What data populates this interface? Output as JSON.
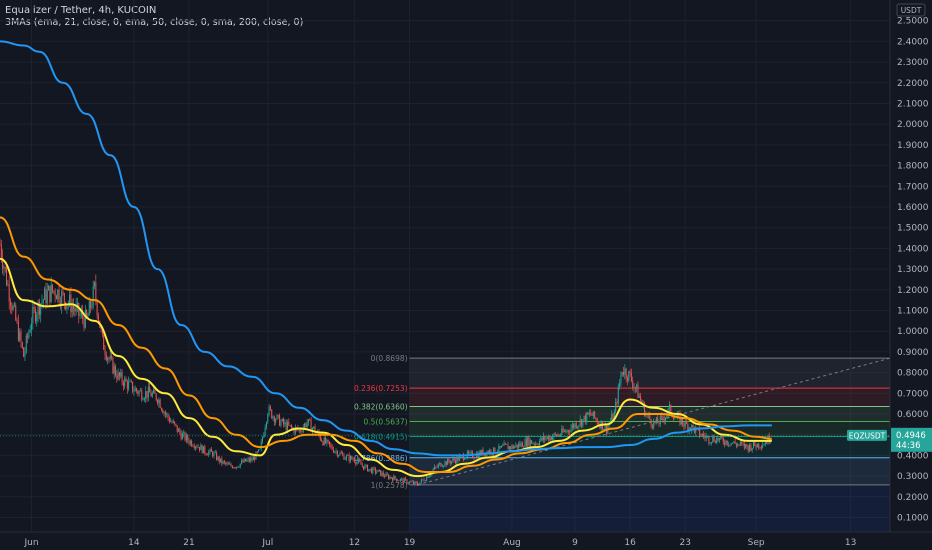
{
  "header": {
    "title": "Equalizer / Tether, 4h, KUCOIN",
    "study": "3MAs (ema, 21, close, 0, ema, 50, close, 0, sma, 200, close, 0)"
  },
  "currency_badge": "USDT",
  "price_tag": {
    "symbol": "EQZUSDT",
    "price": "0.4946",
    "countdown": "44:36",
    "color": "#26a69a"
  },
  "colors": {
    "background": "#131722",
    "up": "#26a69a",
    "down": "#ef5350",
    "ema21": "#ffeb3b",
    "ema50": "#ff9800",
    "sma200": "#2196f3"
  },
  "chart_data": {
    "type": "candlestick",
    "y_axis": {
      "min": 0.03,
      "max": 2.6,
      "ticks": [
        "0.1000",
        "0.2000",
        "0.3000",
        "0.4000",
        "0.5000",
        "0.6000",
        "0.7000",
        "0.8000",
        "0.9000",
        "1.0000",
        "1.1000",
        "1.2000",
        "1.3000",
        "1.4000",
        "1.5000",
        "1.6000",
        "1.7000",
        "1.8000",
        "1.9000",
        "2.0000",
        "2.1000",
        "2.2000",
        "2.3000",
        "2.4000",
        "2.5000"
      ]
    },
    "x_axis": {
      "start": "2021-05-28",
      "end": "2021-09-18",
      "ticks": [
        {
          "date": "2021-06-01",
          "label": "Jun"
        },
        {
          "date": "2021-06-14",
          "label": "14"
        },
        {
          "date": "2021-06-21",
          "label": "21"
        },
        {
          "date": "2021-07-01",
          "label": "Jul"
        },
        {
          "date": "2021-07-12",
          "label": "12"
        },
        {
          "date": "2021-07-19",
          "label": "19"
        },
        {
          "date": "2021-08-01",
          "label": "Aug"
        },
        {
          "date": "2021-08-09",
          "label": "9"
        },
        {
          "date": "2021-08-16",
          "label": "16"
        },
        {
          "date": "2021-08-23",
          "label": "23"
        },
        {
          "date": "2021-09-01",
          "label": "Sep"
        },
        {
          "date": "2021-09-13",
          "label": "13"
        }
      ]
    },
    "price_path": [
      [
        "2021-05-28",
        1.42
      ],
      [
        "2021-05-29",
        1.22
      ],
      [
        "2021-05-30",
        1.05
      ],
      [
        "2021-05-31",
        0.88
      ],
      [
        "2021-06-01",
        1.06
      ],
      [
        "2021-06-02",
        1.13
      ],
      [
        "2021-06-03",
        1.18
      ],
      [
        "2021-06-04",
        1.2
      ],
      [
        "2021-06-05",
        1.16
      ],
      [
        "2021-06-06",
        1.13
      ],
      [
        "2021-06-07",
        1.08
      ],
      [
        "2021-06-08",
        1.05
      ],
      [
        "2021-06-09",
        1.2
      ],
      [
        "2021-06-10",
        0.95
      ],
      [
        "2021-06-11",
        0.85
      ],
      [
        "2021-06-12",
        0.78
      ],
      [
        "2021-06-13",
        0.75
      ],
      [
        "2021-06-14",
        0.72
      ],
      [
        "2021-06-15",
        0.7
      ],
      [
        "2021-06-16",
        0.7
      ],
      [
        "2021-06-17",
        0.68
      ],
      [
        "2021-06-18",
        0.6
      ],
      [
        "2021-06-19",
        0.55
      ],
      [
        "2021-06-20",
        0.5
      ],
      [
        "2021-06-21",
        0.47
      ],
      [
        "2021-06-22",
        0.45
      ],
      [
        "2021-06-23",
        0.42
      ],
      [
        "2021-06-24",
        0.41
      ],
      [
        "2021-06-25",
        0.37
      ],
      [
        "2021-06-26",
        0.35
      ],
      [
        "2021-06-27",
        0.35
      ],
      [
        "2021-06-28",
        0.37
      ],
      [
        "2021-06-29",
        0.38
      ],
      [
        "2021-06-30",
        0.42
      ],
      [
        "2021-07-01",
        0.62
      ],
      [
        "2021-07-02",
        0.58
      ],
      [
        "2021-07-03",
        0.55
      ],
      [
        "2021-07-04",
        0.53
      ],
      [
        "2021-07-05",
        0.52
      ],
      [
        "2021-07-06",
        0.56
      ],
      [
        "2021-07-07",
        0.52
      ],
      [
        "2021-07-08",
        0.47
      ],
      [
        "2021-07-09",
        0.44
      ],
      [
        "2021-07-10",
        0.41
      ],
      [
        "2021-07-11",
        0.39
      ],
      [
        "2021-07-12",
        0.38
      ],
      [
        "2021-07-13",
        0.35
      ],
      [
        "2021-07-14",
        0.33
      ],
      [
        "2021-07-15",
        0.32
      ],
      [
        "2021-07-16",
        0.3
      ],
      [
        "2021-07-17",
        0.29
      ],
      [
        "2021-07-18",
        0.28
      ],
      [
        "2021-07-19",
        0.27
      ],
      [
        "2021-07-20",
        0.26
      ],
      [
        "2021-07-21",
        0.29
      ],
      [
        "2021-07-22",
        0.33
      ],
      [
        "2021-07-23",
        0.36
      ],
      [
        "2021-07-24",
        0.37
      ],
      [
        "2021-07-25",
        0.38
      ],
      [
        "2021-07-26",
        0.4
      ],
      [
        "2021-07-27",
        0.4
      ],
      [
        "2021-07-28",
        0.41
      ],
      [
        "2021-07-29",
        0.42
      ],
      [
        "2021-07-30",
        0.42
      ],
      [
        "2021-07-31",
        0.44
      ],
      [
        "2021-08-01",
        0.44
      ],
      [
        "2021-08-02",
        0.45
      ],
      [
        "2021-08-03",
        0.47
      ],
      [
        "2021-08-04",
        0.46
      ],
      [
        "2021-08-05",
        0.48
      ],
      [
        "2021-08-06",
        0.49
      ],
      [
        "2021-08-07",
        0.5
      ],
      [
        "2021-08-08",
        0.52
      ],
      [
        "2021-08-09",
        0.55
      ],
      [
        "2021-08-10",
        0.57
      ],
      [
        "2021-08-11",
        0.6
      ],
      [
        "2021-08-12",
        0.56
      ],
      [
        "2021-08-13",
        0.53
      ],
      [
        "2021-08-14",
        0.6
      ],
      [
        "2021-08-15",
        0.82
      ],
      [
        "2021-08-16",
        0.78
      ],
      [
        "2021-08-17",
        0.7
      ],
      [
        "2021-08-18",
        0.6
      ],
      [
        "2021-08-19",
        0.55
      ],
      [
        "2021-08-20",
        0.57
      ],
      [
        "2021-08-21",
        0.62
      ],
      [
        "2021-08-22",
        0.58
      ],
      [
        "2021-08-23",
        0.55
      ],
      [
        "2021-08-24",
        0.53
      ],
      [
        "2021-08-25",
        0.5
      ],
      [
        "2021-08-26",
        0.48
      ],
      [
        "2021-08-27",
        0.48
      ],
      [
        "2021-08-28",
        0.47
      ],
      [
        "2021-08-29",
        0.46
      ],
      [
        "2021-08-30",
        0.45
      ],
      [
        "2021-08-31",
        0.44
      ],
      [
        "2021-09-01",
        0.45
      ],
      [
        "2021-09-02",
        0.46
      ],
      [
        "2021-09-03",
        0.4946
      ]
    ],
    "series": [
      {
        "name": "ema 21",
        "color": "#ffeb3b",
        "points": [
          [
            "2021-05-28",
            1.35
          ],
          [
            "2021-05-31",
            1.15
          ],
          [
            "2021-06-03",
            1.12
          ],
          [
            "2021-06-06",
            1.13
          ],
          [
            "2021-06-09",
            1.05
          ],
          [
            "2021-06-12",
            0.88
          ],
          [
            "2021-06-15",
            0.77
          ],
          [
            "2021-06-18",
            0.7
          ],
          [
            "2021-06-21",
            0.58
          ],
          [
            "2021-06-24",
            0.49
          ],
          [
            "2021-06-27",
            0.42
          ],
          [
            "2021-06-30",
            0.4
          ],
          [
            "2021-07-02",
            0.5
          ],
          [
            "2021-07-05",
            0.53
          ],
          [
            "2021-07-08",
            0.51
          ],
          [
            "2021-07-11",
            0.45
          ],
          [
            "2021-07-14",
            0.38
          ],
          [
            "2021-07-17",
            0.33
          ],
          [
            "2021-07-20",
            0.3
          ],
          [
            "2021-07-23",
            0.32
          ],
          [
            "2021-07-26",
            0.36
          ],
          [
            "2021-07-29",
            0.39
          ],
          [
            "2021-08-01",
            0.42
          ],
          [
            "2021-08-04",
            0.44
          ],
          [
            "2021-08-07",
            0.47
          ],
          [
            "2021-08-10",
            0.52
          ],
          [
            "2021-08-13",
            0.55
          ],
          [
            "2021-08-16",
            0.67
          ],
          [
            "2021-08-19",
            0.63
          ],
          [
            "2021-08-22",
            0.6
          ],
          [
            "2021-08-25",
            0.55
          ],
          [
            "2021-08-28",
            0.5
          ],
          [
            "2021-08-31",
            0.47
          ],
          [
            "2021-09-03",
            0.47
          ]
        ]
      },
      {
        "name": "ema 50",
        "color": "#ff9800",
        "points": [
          [
            "2021-05-28",
            1.55
          ],
          [
            "2021-05-31",
            1.36
          ],
          [
            "2021-06-03",
            1.25
          ],
          [
            "2021-06-06",
            1.2
          ],
          [
            "2021-06-09",
            1.15
          ],
          [
            "2021-06-12",
            1.03
          ],
          [
            "2021-06-15",
            0.92
          ],
          [
            "2021-06-18",
            0.82
          ],
          [
            "2021-06-21",
            0.69
          ],
          [
            "2021-06-24",
            0.58
          ],
          [
            "2021-06-27",
            0.5
          ],
          [
            "2021-06-30",
            0.44
          ],
          [
            "2021-07-03",
            0.47
          ],
          [
            "2021-07-06",
            0.5
          ],
          [
            "2021-07-09",
            0.5
          ],
          [
            "2021-07-12",
            0.47
          ],
          [
            "2021-07-15",
            0.41
          ],
          [
            "2021-07-18",
            0.36
          ],
          [
            "2021-07-21",
            0.32
          ],
          [
            "2021-07-24",
            0.32
          ],
          [
            "2021-07-27",
            0.35
          ],
          [
            "2021-07-30",
            0.38
          ],
          [
            "2021-08-02",
            0.41
          ],
          [
            "2021-08-05",
            0.43
          ],
          [
            "2021-08-08",
            0.46
          ],
          [
            "2021-08-11",
            0.5
          ],
          [
            "2021-08-14",
            0.53
          ],
          [
            "2021-08-17",
            0.6
          ],
          [
            "2021-08-20",
            0.6
          ],
          [
            "2021-08-23",
            0.58
          ],
          [
            "2021-08-26",
            0.55
          ],
          [
            "2021-08-29",
            0.52
          ],
          [
            "2021-09-01",
            0.49
          ],
          [
            "2021-09-03",
            0.48
          ]
        ]
      },
      {
        "name": "sma 200",
        "color": "#2196f3",
        "points": [
          [
            "2021-05-28",
            2.4
          ],
          [
            "2021-05-31",
            2.38
          ],
          [
            "2021-06-02",
            2.35
          ],
          [
            "2021-06-05",
            2.2
          ],
          [
            "2021-06-08",
            2.05
          ],
          [
            "2021-06-11",
            1.85
          ],
          [
            "2021-06-14",
            1.6
          ],
          [
            "2021-06-17",
            1.3
          ],
          [
            "2021-06-20",
            1.03
          ],
          [
            "2021-06-23",
            0.9
          ],
          [
            "2021-06-26",
            0.83
          ],
          [
            "2021-06-29",
            0.78
          ],
          [
            "2021-07-02",
            0.7
          ],
          [
            "2021-07-05",
            0.63
          ],
          [
            "2021-07-08",
            0.57
          ],
          [
            "2021-07-11",
            0.52
          ],
          [
            "2021-07-14",
            0.47
          ],
          [
            "2021-07-17",
            0.43
          ],
          [
            "2021-07-20",
            0.41
          ],
          [
            "2021-07-23",
            0.4
          ],
          [
            "2021-07-26",
            0.4
          ],
          [
            "2021-07-29",
            0.41
          ],
          [
            "2021-08-01",
            0.42
          ],
          [
            "2021-08-04",
            0.43
          ],
          [
            "2021-08-07",
            0.435
          ],
          [
            "2021-08-10",
            0.44
          ],
          [
            "2021-08-13",
            0.44
          ],
          [
            "2021-08-16",
            0.45
          ],
          [
            "2021-08-19",
            0.48
          ],
          [
            "2021-08-22",
            0.51
          ],
          [
            "2021-08-25",
            0.53
          ],
          [
            "2021-08-28",
            0.54
          ],
          [
            "2021-08-31",
            0.545
          ],
          [
            "2021-09-03",
            0.545
          ]
        ]
      }
    ],
    "fibonacci": {
      "start_date": "2021-07-19",
      "end_date": "2021-09-18",
      "levels": [
        {
          "label": "0(0.8698)",
          "price": 0.8698,
          "color": "#787b86"
        },
        {
          "label": "0.236(0.7253)",
          "price": 0.7253,
          "color": "#f23645"
        },
        {
          "label": "0.382(0.6360)",
          "price": 0.636,
          "color": "#81c784"
        },
        {
          "label": "0.5(0.5637)",
          "price": 0.5637,
          "color": "#4caf50"
        },
        {
          "label": "0.618(0.4915)",
          "price": 0.4915,
          "color": "#089981"
        },
        {
          "label": "0.786(0.3886)",
          "price": 0.3886,
          "color": "#64b5f6"
        },
        {
          "label": "1(0.2578)",
          "price": 0.2578,
          "color": "#787b86"
        }
      ],
      "trend_line": {
        "from": [
          "2021-07-20",
          0.2578
        ],
        "to": [
          "2021-09-18",
          0.8698
        ]
      }
    }
  }
}
